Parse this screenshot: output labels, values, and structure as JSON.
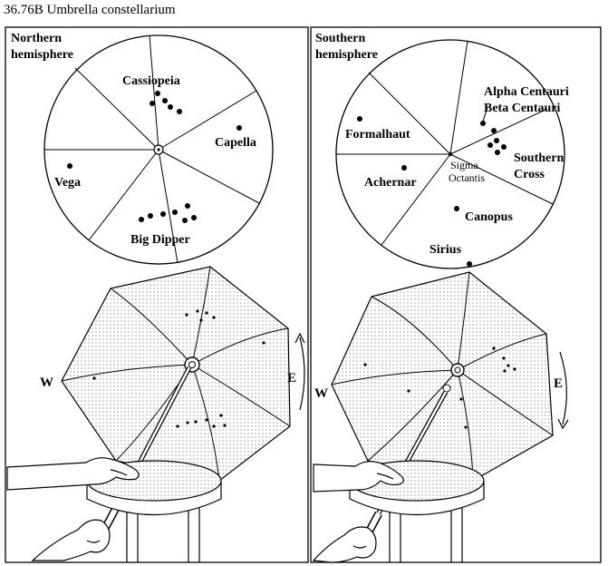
{
  "title": "36.76B Umbrella constellarium",
  "panels": {
    "north": {
      "heading_line1": "Northern",
      "heading_line2": "hemisphere",
      "stars": {
        "cassiopeia": "Cassiopeia",
        "capella": "Capella",
        "vega": "Vega",
        "big_dipper": "Big Dipper"
      },
      "west": "W",
      "east": "E"
    },
    "south": {
      "heading_line1": "Southern",
      "heading_line2": "hemisphere",
      "stars": {
        "alpha_centauri": "Alpha Centauri",
        "beta_centauri": "Beta Centauri",
        "formalhaut": "Formalhaut",
        "southern_line1": "Southern",
        "southern_line2": "Cross",
        "sigma_line1": "Sigma",
        "sigma_line2": "Octantis",
        "achernar": "Achernar",
        "canopus": "Canopus",
        "sirius": "Sirius"
      },
      "west": "W",
      "east": "E"
    }
  },
  "colors": {
    "ink": "#000000",
    "paper": "#ffffff",
    "dot_fill": "#b8b8b8"
  }
}
